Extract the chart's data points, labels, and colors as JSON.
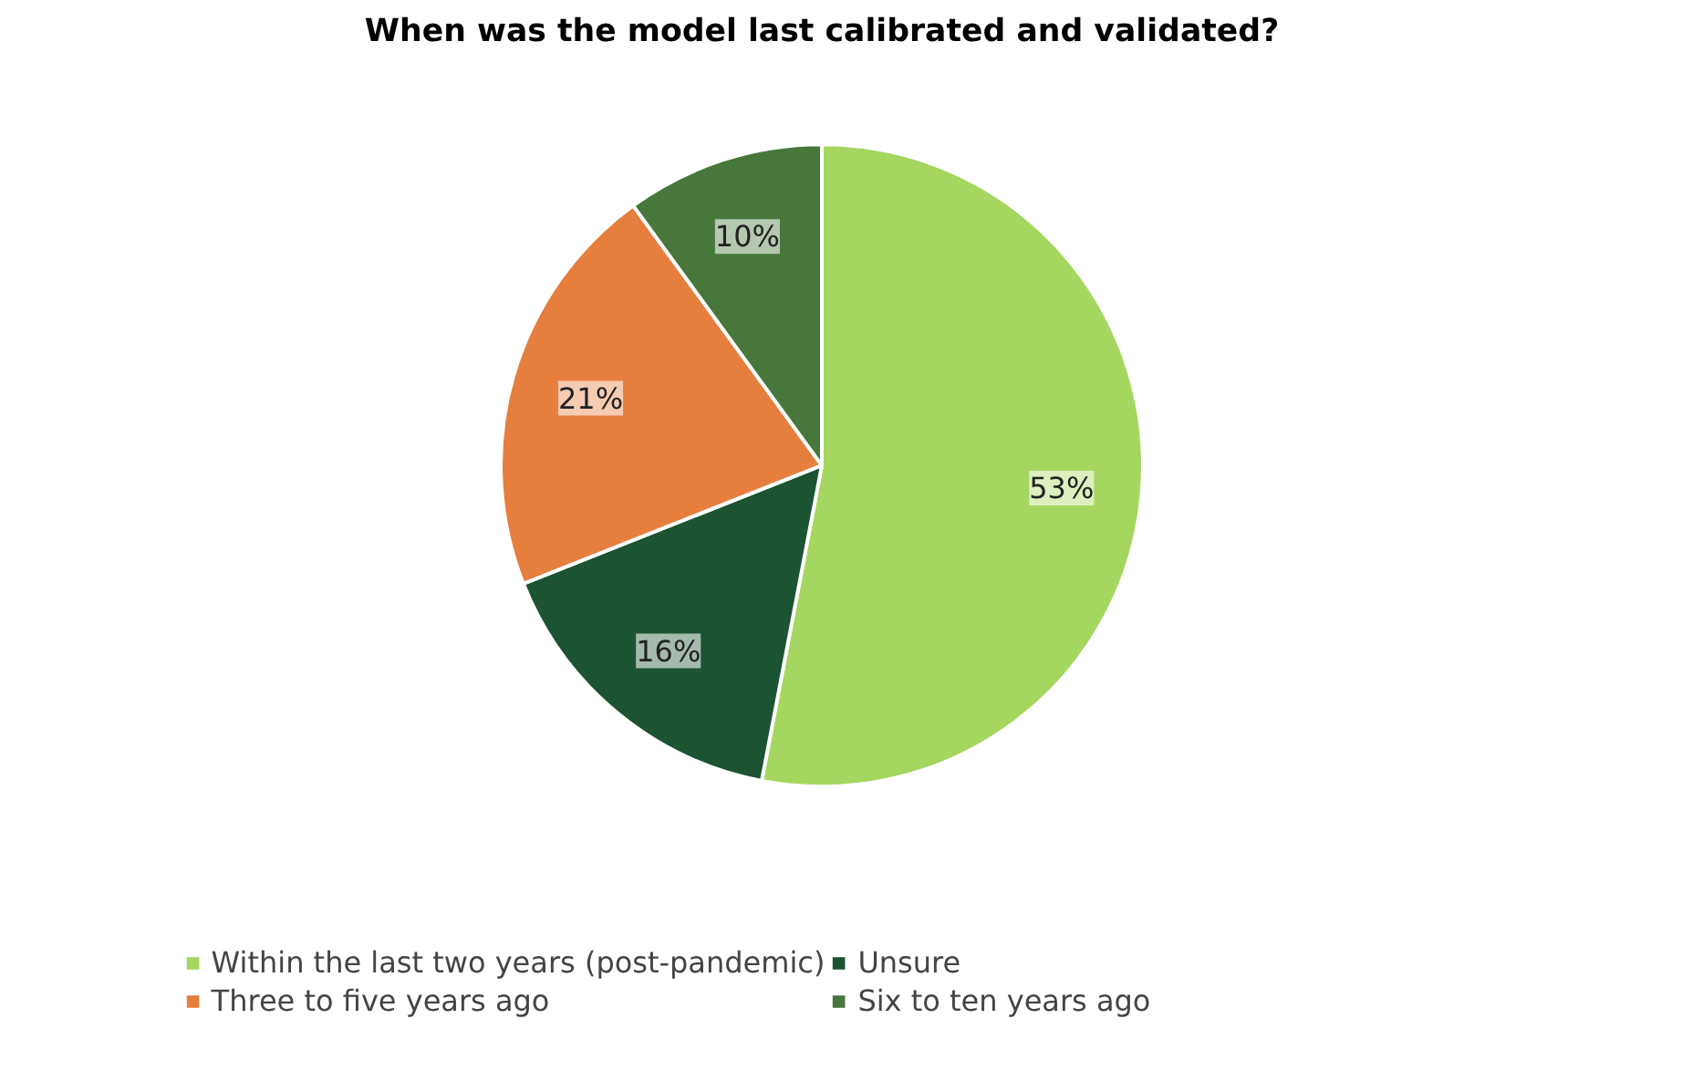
{
  "chart_data": {
    "type": "pie",
    "title": "When was the model last calibrated and validated?",
    "categories": [
      "Within the last two years (post-pandemic)",
      "Unsure",
      "Three to five years ago",
      "Six to ten years ago"
    ],
    "values": [
      53,
      16,
      21,
      10
    ],
    "value_labels": [
      "53%",
      "16%",
      "21%",
      "10%"
    ],
    "colors": [
      "#a5d65f",
      "#1c5332",
      "#e67e3e",
      "#47773b"
    ],
    "legend": "bottom"
  }
}
